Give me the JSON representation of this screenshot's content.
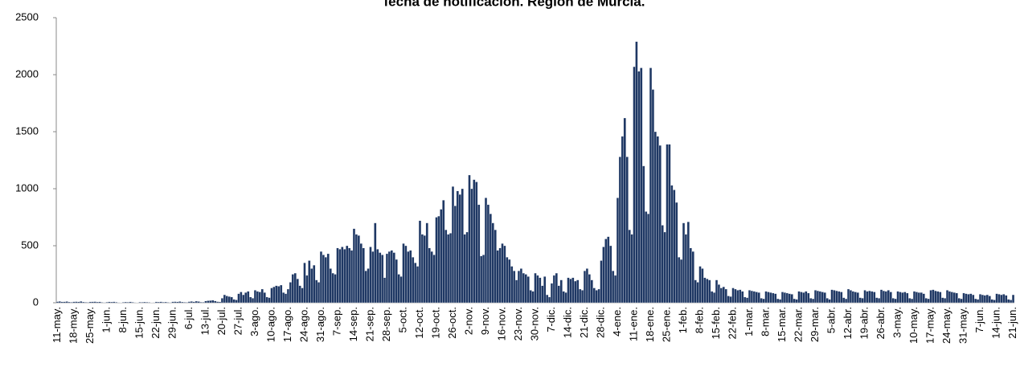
{
  "chart_data": {
    "type": "bar",
    "title": "fecha de notificación. Región de Murcia.",
    "color": "#1f3864",
    "ylim": [
      0,
      2500
    ],
    "yticks": [
      0,
      500,
      1000,
      1500,
      2000,
      2500
    ],
    "grid": false,
    "categories": [
      "11-may.",
      null,
      null,
      null,
      null,
      null,
      null,
      "18-may.",
      null,
      null,
      null,
      null,
      null,
      null,
      "25-may.",
      null,
      null,
      null,
      null,
      null,
      null,
      "1-jun.",
      null,
      null,
      null,
      null,
      null,
      null,
      "8-jun.",
      null,
      null,
      null,
      null,
      null,
      null,
      "15-jun.",
      null,
      null,
      null,
      null,
      null,
      null,
      "22-jun.",
      null,
      null,
      null,
      null,
      null,
      null,
      "29-jun.",
      null,
      null,
      null,
      null,
      null,
      null,
      "6-jul.",
      null,
      null,
      null,
      null,
      null,
      null,
      "13-jul.",
      null,
      null,
      null,
      null,
      null,
      null,
      "20-jul.",
      null,
      null,
      null,
      null,
      null,
      null,
      "27-jul.",
      null,
      null,
      null,
      null,
      null,
      null,
      "3-ago.",
      null,
      null,
      null,
      null,
      null,
      null,
      "10-ago.",
      null,
      null,
      null,
      null,
      null,
      null,
      "17-ago.",
      null,
      null,
      null,
      null,
      null,
      null,
      "24-ago.",
      null,
      null,
      null,
      null,
      null,
      null,
      "31-ago.",
      null,
      null,
      null,
      null,
      null,
      null,
      "7-sep.",
      null,
      null,
      null,
      null,
      null,
      null,
      "14-sep.",
      null,
      null,
      null,
      null,
      null,
      null,
      "21-sep.",
      null,
      null,
      null,
      null,
      null,
      null,
      "28-sep.",
      null,
      null,
      null,
      null,
      null,
      null,
      "5-oct.",
      null,
      null,
      null,
      null,
      null,
      null,
      "12-oct.",
      null,
      null,
      null,
      null,
      null,
      null,
      "19-oct.",
      null,
      null,
      null,
      null,
      null,
      null,
      "26-oct.",
      null,
      null,
      null,
      null,
      null,
      null,
      "2-nov.",
      null,
      null,
      null,
      null,
      null,
      null,
      "9-nov.",
      null,
      null,
      null,
      null,
      null,
      null,
      "16-nov.",
      null,
      null,
      null,
      null,
      null,
      null,
      "23-nov.",
      null,
      null,
      null,
      null,
      null,
      null,
      "30-nov.",
      null,
      null,
      null,
      null,
      null,
      null,
      "7-dic.",
      null,
      null,
      null,
      null,
      null,
      null,
      "14-dic.",
      null,
      null,
      null,
      null,
      null,
      null,
      "21-dic.",
      null,
      null,
      null,
      null,
      null,
      null,
      "28-dic.",
      null,
      null,
      null,
      null,
      null,
      null,
      "4-ene.",
      null,
      null,
      null,
      null,
      null,
      null,
      "11-ene.",
      null,
      null,
      null,
      null,
      null,
      null,
      "18-ene.",
      null,
      null,
      null,
      null,
      null,
      null,
      "25-ene.",
      null,
      null,
      null,
      null,
      null,
      null,
      "1-feb.",
      null,
      null,
      null,
      null,
      null,
      null,
      "8-feb.",
      null,
      null,
      null,
      null,
      null,
      null,
      "15-feb.",
      null,
      null,
      null,
      null,
      null,
      null,
      "22-feb.",
      null,
      null,
      null,
      null,
      null,
      null,
      "1-mar.",
      null,
      null,
      null,
      null,
      null,
      null,
      "8-mar.",
      null,
      null,
      null,
      null,
      null,
      null,
      "15-mar.",
      null,
      null,
      null,
      null,
      null,
      null,
      "22-mar.",
      null,
      null,
      null,
      null,
      null,
      null,
      "29-mar.",
      null,
      null,
      null,
      null,
      null,
      null,
      "5-abr.",
      null,
      null,
      null,
      null,
      null,
      null,
      "12-abr.",
      null,
      null,
      null,
      null,
      null,
      null,
      "19-abr.",
      null,
      null,
      null,
      null,
      null,
      null,
      "26-abr.",
      null,
      null,
      null,
      null,
      null,
      null,
      "3-may.",
      null,
      null,
      null,
      null,
      null,
      null,
      "10-may.",
      null,
      null,
      null,
      null,
      null,
      null,
      "17-may.",
      null,
      null,
      null,
      null,
      null,
      null,
      "24-may.",
      null,
      null,
      null,
      null,
      null,
      null,
      "31-may.",
      null,
      null,
      null,
      null,
      null,
      null,
      "7-jun.",
      null,
      null,
      null,
      null,
      null,
      null,
      "14-jun.",
      null,
      null,
      null,
      null,
      null,
      null,
      "21-jun."
    ],
    "values": [
      10,
      12,
      8,
      9,
      11,
      7,
      5,
      9,
      10,
      8,
      12,
      7,
      5,
      4,
      8,
      9,
      10,
      7,
      8,
      4,
      3,
      6,
      8,
      7,
      9,
      6,
      3,
      2,
      5,
      7,
      6,
      8,
      5,
      3,
      2,
      6,
      5,
      7,
      6,
      4,
      2,
      3,
      8,
      7,
      9,
      6,
      7,
      4,
      3,
      9,
      10,
      8,
      11,
      7,
      5,
      4,
      10,
      12,
      9,
      14,
      11,
      6,
      5,
      15,
      18,
      20,
      22,
      16,
      10,
      8,
      40,
      70,
      60,
      55,
      50,
      30,
      25,
      80,
      95,
      70,
      90,
      100,
      50,
      40,
      110,
      100,
      95,
      120,
      90,
      50,
      45,
      130,
      140,
      150,
      145,
      155,
      90,
      80,
      120,
      180,
      250,
      260,
      210,
      150,
      130,
      350,
      240,
      370,
      300,
      330,
      200,
      180,
      450,
      420,
      400,
      430,
      300,
      260,
      250,
      480,
      470,
      490,
      470,
      500,
      480,
      460,
      650,
      600,
      590,
      520,
      480,
      280,
      300,
      490,
      450,
      700,
      470,
      440,
      420,
      220,
      430,
      450,
      460,
      440,
      380,
      250,
      230,
      520,
      500,
      450,
      460,
      400,
      350,
      320,
      720,
      600,
      590,
      700,
      480,
      450,
      420,
      750,
      760,
      820,
      900,
      640,
      600,
      610,
      1020,
      850,
      980,
      950,
      1000,
      600,
      620,
      1120,
      1000,
      1080,
      1060,
      860,
      410,
      420,
      920,
      860,
      780,
      700,
      640,
      460,
      480,
      520,
      500,
      400,
      380,
      320,
      280,
      200,
      280,
      300,
      260,
      250,
      230,
      110,
      100,
      260,
      240,
      220,
      150,
      230,
      70,
      50,
      170,
      240,
      260,
      150,
      200,
      100,
      90,
      220,
      210,
      220,
      190,
      200,
      120,
      110,
      280,
      300,
      250,
      200,
      130,
      110,
      120,
      370,
      490,
      560,
      580,
      500,
      280,
      240,
      920,
      1280,
      1460,
      1620,
      1280,
      640,
      600,
      2070,
      2290,
      2030,
      2060,
      1200,
      800,
      780,
      2060,
      1870,
      1500,
      1460,
      1380,
      680,
      620,
      1390,
      1390,
      1030,
      990,
      880,
      400,
      380,
      700,
      600,
      710,
      480,
      450,
      200,
      180,
      320,
      300,
      220,
      210,
      200,
      100,
      90,
      200,
      160,
      130,
      140,
      120,
      60,
      55,
      130,
      120,
      110,
      115,
      100,
      50,
      45,
      110,
      105,
      100,
      95,
      90,
      40,
      35,
      100,
      95,
      90,
      85,
      80,
      35,
      30,
      95,
      90,
      85,
      80,
      75,
      35,
      30,
      100,
      95,
      90,
      100,
      85,
      40,
      35,
      110,
      105,
      100,
      95,
      90,
      40,
      30,
      115,
      110,
      105,
      100,
      95,
      45,
      35,
      120,
      110,
      100,
      95,
      90,
      45,
      40,
      110,
      100,
      105,
      100,
      95,
      45,
      40,
      115,
      105,
      100,
      110,
      95,
      40,
      35,
      100,
      95,
      90,
      95,
      85,
      40,
      35,
      100,
      95,
      90,
      90,
      80,
      40,
      35,
      110,
      115,
      105,
      100,
      95,
      45,
      40,
      110,
      100,
      95,
      90,
      85,
      40,
      35,
      85,
      80,
      75,
      80,
      70,
      35,
      30,
      75,
      70,
      65,
      70,
      60,
      30,
      25,
      80,
      75,
      70,
      75,
      65,
      30,
      25,
      70
    ]
  }
}
